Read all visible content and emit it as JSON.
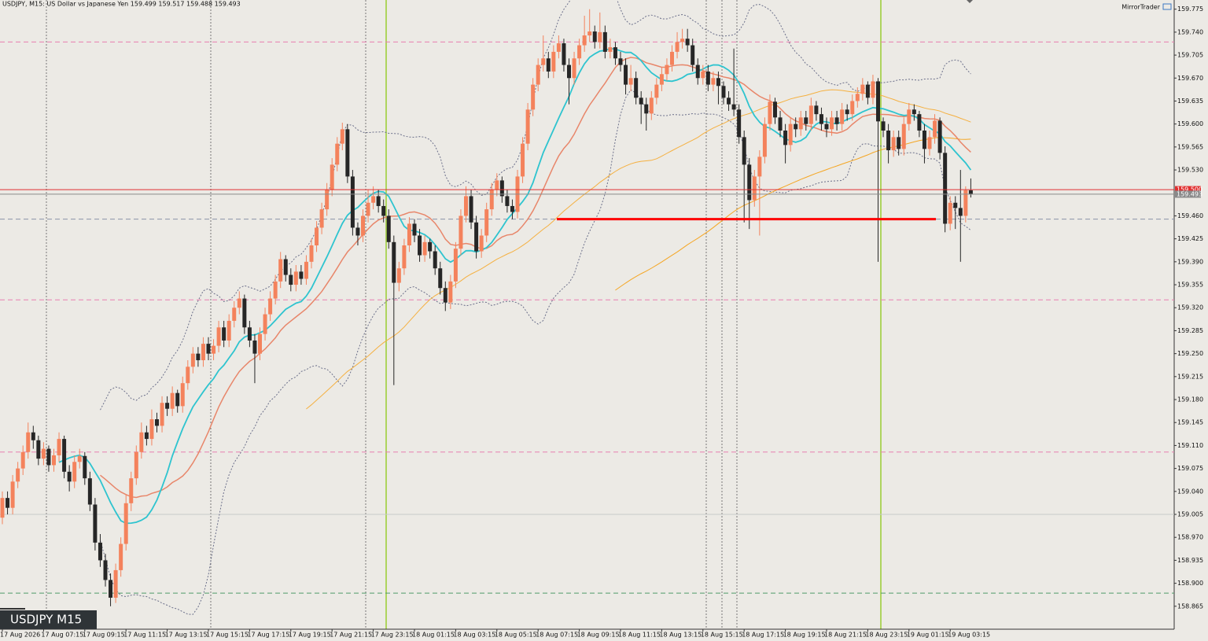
{
  "chart_data": {
    "type": "candlestick",
    "title": "USDJPY, M15:  US Dollar vs Japanese Yen  159.499 159.517 159.488 159.493",
    "brand": "MirrorTrader",
    "symbol_label": "USDJPY M15",
    "bull_color": "#f4825c",
    "bear_color": "#262626",
    "ylim": [
      158.83,
      159.789
    ],
    "yticks": [
      159.775,
      {
        "value": 159.74,
        "label": "159.740"
      },
      159.705,
      {
        "value": 159.67,
        "label": "159.670"
      },
      159.635,
      {
        "value": 159.6,
        "label": "159.600"
      },
      159.565,
      {
        "value": 159.53,
        "label": "159.530"
      },
      {
        "value": 159.46,
        "label": "159.460"
      },
      159.425,
      {
        "value": 159.39,
        "label": "159.390"
      },
      159.355,
      {
        "value": 159.32,
        "label": "159.320"
      },
      159.285,
      {
        "value": 159.25,
        "label": "159.250"
      },
      159.215,
      {
        "value": 159.18,
        "label": "159.180"
      },
      159.145,
      {
        "value": 159.11,
        "label": "159.110"
      },
      159.075,
      {
        "value": 159.04,
        "label": "159.040"
      },
      159.005,
      {
        "value": 158.97,
        "label": "158.970"
      },
      158.935,
      {
        "value": 158.9,
        "label": "158.900"
      },
      158.865
    ],
    "xlabels": [
      "17 Aug 2026",
      "17 Aug 07:15",
      "17 Aug 09:15",
      "17 Aug 11:15",
      "17 Aug 13:15",
      "17 Aug 15:15",
      "17 Aug 17:15",
      "17 Aug 19:15",
      "17 Aug 21:15",
      "17 Aug 23:15",
      "18 Aug 01:15",
      "18 Aug 03:15",
      "18 Aug 05:15",
      "18 Aug 07:15",
      "18 Aug 09:15",
      "18 Aug 11:15",
      "18 Aug 13:15",
      "18 Aug 15:15",
      "18 Aug 17:15",
      "18 Aug 19:15",
      "18 Aug 21:15",
      "18 Aug 23:15",
      "19 Aug 01:15",
      "19 Aug 03:15"
    ],
    "levels": [
      {
        "value": 159.725,
        "color": "#e87fb0",
        "dash": true
      },
      {
        "value": 159.332,
        "color": "#e87fb0",
        "dash": true
      },
      {
        "value": 159.1,
        "color": "#e87fb0",
        "dash": true
      },
      {
        "value": 159.455,
        "color": "#8a93a8",
        "dash": true
      },
      {
        "value": 158.885,
        "color": "#4f9a6a",
        "dash": true
      },
      {
        "value": 159.005,
        "color": "#c9c9c9",
        "dash": false
      }
    ],
    "support": {
      "value": 159.455,
      "color": "#ff0000"
    },
    "price_lines": [
      {
        "value": 159.5,
        "label": "159.500",
        "color": "#e03030"
      },
      {
        "value": 159.493,
        "label": "159.493",
        "color": "#8a8a8a"
      }
    ],
    "ohlc": [
      [
        159.0,
        159.04,
        158.99,
        159.03
      ],
      [
        159.03,
        159.04,
        159.005,
        159.015
      ],
      [
        159.015,
        159.065,
        159.005,
        159.055
      ],
      [
        159.055,
        159.085,
        159.045,
        159.075
      ],
      [
        159.075,
        159.11,
        159.065,
        159.1
      ],
      [
        159.1,
        159.145,
        159.09,
        159.13
      ],
      [
        159.13,
        159.14,
        159.105,
        159.118
      ],
      [
        159.118,
        159.125,
        159.08,
        159.09
      ],
      [
        159.09,
        159.115,
        159.08,
        159.105
      ],
      [
        159.105,
        159.11,
        159.07,
        159.08
      ],
      [
        159.08,
        159.105,
        159.07,
        159.095
      ],
      [
        159.095,
        159.13,
        159.085,
        159.12
      ],
      [
        159.12,
        159.125,
        159.06,
        159.07
      ],
      [
        159.07,
        159.08,
        159.04,
        159.055
      ],
      [
        159.055,
        159.095,
        159.045,
        159.085
      ],
      [
        159.085,
        159.105,
        159.075,
        159.094
      ],
      [
        159.094,
        159.1,
        159.05,
        159.06
      ],
      [
        159.06,
        159.07,
        159.01,
        159.02
      ],
      [
        159.02,
        159.03,
        158.95,
        158.962
      ],
      [
        158.962,
        158.975,
        158.925,
        158.935
      ],
      [
        158.935,
        158.945,
        158.895,
        158.905
      ],
      [
        158.905,
        158.915,
        158.865,
        158.878
      ],
      [
        158.878,
        158.93,
        158.87,
        158.92
      ],
      [
        158.92,
        158.97,
        158.91,
        158.96
      ],
      [
        158.96,
        159.035,
        158.95,
        159.022
      ],
      [
        159.022,
        159.07,
        159.01,
        159.06
      ],
      [
        159.06,
        159.11,
        159.05,
        159.1
      ],
      [
        159.1,
        159.145,
        159.09,
        159.13
      ],
      [
        159.13,
        159.14,
        159.11,
        159.12
      ],
      [
        159.12,
        159.165,
        159.11,
        159.15
      ],
      [
        159.15,
        159.16,
        159.13,
        159.14
      ],
      [
        159.14,
        159.185,
        159.13,
        159.175
      ],
      [
        159.175,
        159.185,
        159.155,
        159.166
      ],
      [
        159.166,
        159.2,
        159.155,
        159.19
      ],
      [
        159.19,
        159.195,
        159.16,
        159.17
      ],
      [
        159.17,
        159.215,
        159.16,
        159.205
      ],
      [
        159.205,
        159.24,
        159.195,
        159.23
      ],
      [
        159.23,
        159.26,
        159.22,
        159.25
      ],
      [
        159.25,
        159.26,
        159.23,
        159.24
      ],
      [
        159.24,
        159.275,
        159.23,
        159.265
      ],
      [
        159.265,
        159.275,
        159.24,
        159.25
      ],
      [
        159.25,
        159.272,
        159.24,
        159.262
      ],
      [
        159.262,
        159.3,
        159.252,
        159.29
      ],
      [
        159.29,
        159.3,
        159.26,
        159.27
      ],
      [
        159.27,
        159.31,
        159.26,
        159.3
      ],
      [
        159.3,
        159.33,
        159.29,
        159.32
      ],
      [
        159.32,
        159.345,
        159.31,
        159.334
      ],
      [
        159.334,
        159.34,
        159.28,
        159.29
      ],
      [
        159.29,
        159.3,
        159.26,
        159.27
      ],
      [
        159.27,
        159.28,
        159.205,
        159.25
      ],
      [
        159.25,
        159.29,
        159.24,
        159.28
      ],
      [
        159.28,
        159.32,
        159.27,
        159.31
      ],
      [
        159.31,
        159.345,
        159.3,
        159.334
      ],
      [
        159.334,
        159.37,
        159.325,
        159.36
      ],
      [
        159.36,
        159.405,
        159.35,
        159.394
      ],
      [
        159.394,
        159.4,
        159.36,
        159.37
      ],
      [
        159.37,
        159.38,
        159.345,
        159.355
      ],
      [
        159.355,
        159.385,
        159.345,
        159.375
      ],
      [
        159.375,
        159.385,
        159.355,
        159.364
      ],
      [
        159.364,
        159.4,
        159.355,
        159.39
      ],
      [
        159.39,
        159.425,
        159.38,
        159.415
      ],
      [
        159.415,
        159.452,
        159.405,
        159.442
      ],
      [
        159.442,
        159.48,
        159.432,
        159.47
      ],
      [
        159.47,
        159.51,
        159.46,
        159.5
      ],
      [
        159.5,
        159.548,
        159.49,
        159.538
      ],
      [
        159.538,
        159.58,
        159.528,
        159.57
      ],
      [
        159.57,
        159.602,
        159.56,
        159.592
      ],
      [
        159.592,
        159.6,
        159.51,
        159.52
      ],
      [
        159.52,
        159.53,
        159.43,
        159.442
      ],
      [
        159.442,
        159.45,
        159.415,
        159.43
      ],
      [
        159.43,
        159.47,
        159.42,
        159.46
      ],
      [
        159.46,
        159.5,
        159.45,
        159.48
      ],
      [
        159.48,
        159.505,
        159.47,
        159.49
      ],
      [
        159.49,
        159.5,
        159.465,
        159.475
      ],
      [
        159.475,
        159.485,
        159.45,
        159.46
      ],
      [
        159.46,
        159.47,
        159.41,
        159.42
      ],
      [
        159.42,
        159.43,
        159.202,
        159.358
      ],
      [
        159.358,
        159.39,
        159.345,
        159.38
      ],
      [
        159.38,
        159.425,
        159.37,
        159.415
      ],
      [
        159.415,
        159.458,
        159.405,
        159.448
      ],
      [
        159.448,
        159.455,
        159.42,
        159.43
      ],
      [
        159.43,
        159.44,
        159.39,
        159.4
      ],
      [
        159.4,
        159.43,
        159.39,
        159.42
      ],
      [
        159.42,
        159.425,
        159.395,
        159.406
      ],
      [
        159.406,
        159.415,
        159.37,
        159.38
      ],
      [
        159.38,
        159.39,
        159.34,
        159.35
      ],
      [
        159.35,
        159.36,
        159.315,
        159.328
      ],
      [
        159.328,
        159.37,
        159.318,
        159.36
      ],
      [
        159.36,
        159.42,
        159.35,
        159.41
      ],
      [
        159.41,
        159.47,
        159.4,
        159.46
      ],
      [
        159.46,
        159.505,
        159.45,
        159.49
      ],
      [
        159.49,
        159.5,
        159.44,
        159.45
      ],
      [
        159.45,
        159.46,
        159.395,
        159.406
      ],
      [
        159.406,
        159.44,
        159.396,
        159.43
      ],
      [
        159.43,
        159.48,
        159.42,
        159.47
      ],
      [
        159.47,
        159.51,
        159.46,
        159.5
      ],
      [
        159.5,
        159.525,
        159.49,
        159.514
      ],
      [
        159.514,
        159.52,
        159.48,
        159.49
      ],
      [
        159.49,
        159.5,
        159.465,
        159.475
      ],
      [
        159.475,
        159.485,
        159.455,
        159.466
      ],
      [
        159.466,
        159.53,
        159.456,
        159.52
      ],
      [
        159.52,
        159.58,
        159.51,
        159.57
      ],
      [
        159.57,
        159.632,
        159.56,
        159.622
      ],
      [
        159.622,
        159.67,
        159.612,
        159.66
      ],
      [
        159.66,
        159.7,
        159.65,
        159.69
      ],
      [
        159.69,
        159.735,
        159.68,
        159.7
      ],
      [
        159.7,
        159.71,
        159.67,
        159.68
      ],
      [
        159.68,
        159.72,
        159.67,
        159.71
      ],
      [
        159.71,
        159.735,
        159.7,
        159.723
      ],
      [
        159.723,
        159.73,
        159.68,
        159.69
      ],
      [
        159.69,
        159.7,
        159.63,
        159.67
      ],
      [
        159.67,
        159.71,
        159.66,
        159.7
      ],
      [
        159.7,
        159.73,
        159.69,
        159.72
      ],
      [
        159.72,
        159.765,
        159.71,
        159.735
      ],
      [
        159.735,
        159.775,
        159.725,
        159.741
      ],
      [
        159.741,
        159.75,
        159.715,
        159.725
      ],
      [
        159.725,
        159.77,
        159.715,
        159.74
      ],
      [
        159.74,
        159.75,
        159.7,
        159.71
      ],
      [
        159.71,
        159.73,
        159.7,
        159.717
      ],
      [
        159.717,
        159.725,
        159.69,
        159.7
      ],
      [
        159.7,
        159.71,
        159.68,
        159.69
      ],
      [
        159.69,
        159.7,
        159.645,
        159.66
      ],
      [
        159.66,
        159.69,
        159.65,
        159.67
      ],
      [
        159.67,
        159.68,
        159.63,
        159.64
      ],
      [
        159.64,
        159.65,
        159.6,
        159.63
      ],
      [
        159.63,
        159.64,
        159.59,
        159.616
      ],
      [
        159.616,
        159.65,
        159.606,
        159.64
      ],
      [
        159.64,
        159.67,
        159.63,
        159.66
      ],
      [
        159.66,
        159.686,
        159.65,
        159.676
      ],
      [
        159.676,
        159.7,
        159.666,
        159.69
      ],
      [
        159.69,
        159.72,
        159.68,
        159.71
      ],
      [
        159.71,
        159.74,
        159.7,
        159.725
      ],
      [
        159.725,
        159.745,
        159.715,
        159.73
      ],
      [
        159.73,
        159.745,
        159.71,
        159.72
      ],
      [
        159.72,
        159.73,
        159.68,
        159.69
      ],
      [
        159.69,
        159.7,
        159.66,
        159.67
      ],
      [
        159.67,
        159.69,
        159.66,
        159.68
      ],
      [
        159.68,
        159.69,
        159.65,
        159.66
      ],
      [
        159.66,
        159.68,
        159.65,
        159.67
      ],
      [
        159.67,
        159.68,
        159.63,
        159.658
      ],
      [
        159.658,
        159.665,
        159.63,
        159.64
      ],
      [
        159.64,
        159.65,
        159.62,
        159.63
      ],
      [
        159.63,
        159.715,
        159.612,
        159.622
      ],
      [
        159.622,
        159.63,
        159.57,
        159.58
      ],
      [
        159.58,
        159.59,
        159.45,
        159.538
      ],
      [
        159.538,
        159.548,
        159.44,
        159.484
      ],
      [
        159.484,
        159.53,
        159.474,
        159.52
      ],
      [
        159.52,
        159.56,
        159.43,
        159.55
      ],
      [
        159.55,
        159.61,
        159.54,
        159.6
      ],
      [
        159.6,
        159.645,
        159.59,
        159.634
      ],
      [
        159.634,
        159.64,
        159.6,
        159.61
      ],
      [
        159.61,
        159.62,
        159.58,
        159.59
      ],
      [
        159.59,
        159.6,
        159.54,
        159.568
      ],
      [
        159.568,
        159.61,
        159.558,
        159.6
      ],
      [
        159.6,
        159.61,
        159.58,
        159.592
      ],
      [
        159.592,
        159.62,
        159.582,
        159.61
      ],
      [
        159.61,
        159.62,
        159.59,
        159.6
      ],
      [
        159.6,
        159.64,
        159.59,
        159.628
      ],
      [
        159.628,
        159.635,
        159.605,
        159.615
      ],
      [
        159.615,
        159.625,
        159.59,
        159.6
      ],
      [
        159.6,
        159.61,
        159.58,
        159.592
      ],
      [
        159.592,
        159.62,
        159.582,
        159.61
      ],
      [
        159.61,
        159.62,
        159.59,
        159.6
      ],
      [
        159.6,
        159.632,
        159.59,
        159.622
      ],
      [
        159.622,
        159.63,
        159.605,
        159.615
      ],
      [
        159.615,
        159.645,
        159.605,
        159.635
      ],
      [
        159.635,
        159.656,
        159.625,
        159.646
      ],
      [
        159.646,
        159.67,
        159.636,
        159.66
      ],
      [
        159.66,
        159.665,
        159.63,
        159.64
      ],
      [
        159.64,
        159.675,
        159.63,
        159.665
      ],
      [
        159.665,
        159.67,
        159.39,
        159.604
      ],
      [
        159.604,
        159.61,
        159.58,
        159.59
      ],
      [
        159.59,
        159.6,
        159.54,
        159.56
      ],
      [
        159.56,
        159.59,
        159.55,
        159.58
      ],
      [
        159.58,
        159.59,
        159.552,
        159.562
      ],
      [
        159.562,
        159.61,
        159.552,
        159.6
      ],
      [
        159.6,
        159.632,
        159.59,
        159.622
      ],
      [
        159.622,
        159.63,
        159.605,
        159.615
      ],
      [
        159.615,
        159.62,
        159.58,
        159.59
      ],
      [
        159.59,
        159.6,
        159.54,
        159.562
      ],
      [
        159.562,
        159.59,
        159.552,
        159.58
      ],
      [
        159.58,
        159.615,
        159.57,
        159.605
      ],
      [
        159.605,
        159.61,
        159.546,
        159.556
      ],
      [
        159.556,
        159.566,
        159.435,
        159.448
      ],
      [
        159.448,
        159.49,
        159.438,
        159.48
      ],
      [
        159.48,
        159.49,
        159.44,
        159.472
      ],
      [
        159.472,
        159.53,
        159.39,
        159.46
      ],
      [
        159.46,
        159.505,
        159.45,
        159.499
      ],
      [
        159.499,
        159.517,
        159.488,
        159.493
      ]
    ]
  }
}
